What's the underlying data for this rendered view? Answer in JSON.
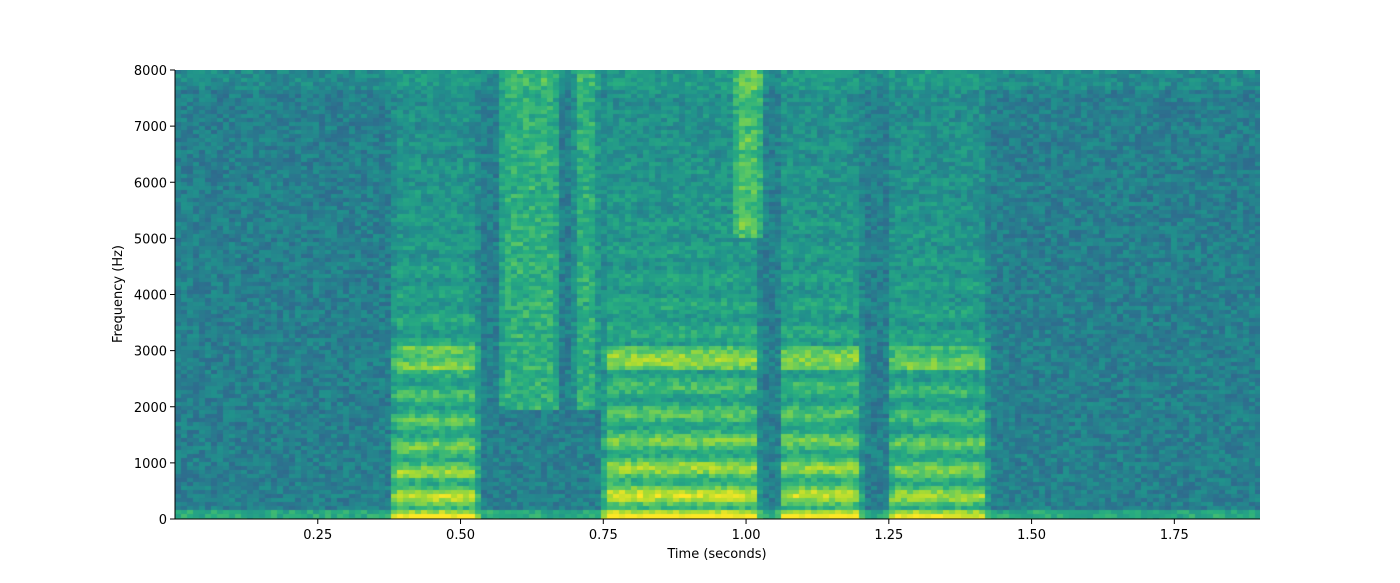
{
  "chart_data": {
    "type": "heatmap",
    "title": "",
    "xlabel": "Time (seconds)",
    "ylabel": "Frequency (Hz)",
    "xlim": [
      0.0,
      1.9
    ],
    "ylim": [
      0,
      8000
    ],
    "x_ticks": [
      {
        "value": 0.25,
        "label": "0.25"
      },
      {
        "value": 0.5,
        "label": "0.50"
      },
      {
        "value": 0.75,
        "label": "0.75"
      },
      {
        "value": 1.0,
        "label": "1.00"
      },
      {
        "value": 1.25,
        "label": "1.25"
      },
      {
        "value": 1.5,
        "label": "1.50"
      },
      {
        "value": 1.75,
        "label": "1.75"
      }
    ],
    "y_ticks": [
      {
        "value": 0,
        "label": "0"
      },
      {
        "value": 1000,
        "label": "1000"
      },
      {
        "value": 2000,
        "label": "2000"
      },
      {
        "value": 3000,
        "label": "3000"
      },
      {
        "value": 4000,
        "label": "4000"
      },
      {
        "value": 5000,
        "label": "5000"
      },
      {
        "value": 6000,
        "label": "6000"
      },
      {
        "value": 7000,
        "label": "7000"
      },
      {
        "value": 8000,
        "label": "8000"
      }
    ],
    "colormap": "viridis",
    "grid": false,
    "legend": "none",
    "colors": {
      "low": "#3b528b",
      "mid": "#21918c",
      "high": "#fde725"
    },
    "voiced_segments": [
      {
        "t_start": 0.38,
        "t_end": 0.53,
        "f0_hz": 140,
        "energy": 0.95
      },
      {
        "t_start": 0.75,
        "t_end": 1.02,
        "f0_hz": 150,
        "energy": 1.0
      },
      {
        "t_start": 1.06,
        "t_end": 1.2,
        "f0_hz": 150,
        "energy": 0.95
      },
      {
        "t_start": 1.25,
        "t_end": 1.42,
        "f0_hz": 145,
        "energy": 0.85
      }
    ],
    "fricative_segments": [
      {
        "t_start": 0.57,
        "t_end": 0.67,
        "f_low_hz": 2000,
        "energy": 0.75
      },
      {
        "t_start": 0.7,
        "t_end": 0.74,
        "f_low_hz": 2000,
        "energy": 0.7
      },
      {
        "t_start": 0.98,
        "t_end": 1.03,
        "f_low_hz": 5000,
        "energy": 0.75
      }
    ]
  }
}
